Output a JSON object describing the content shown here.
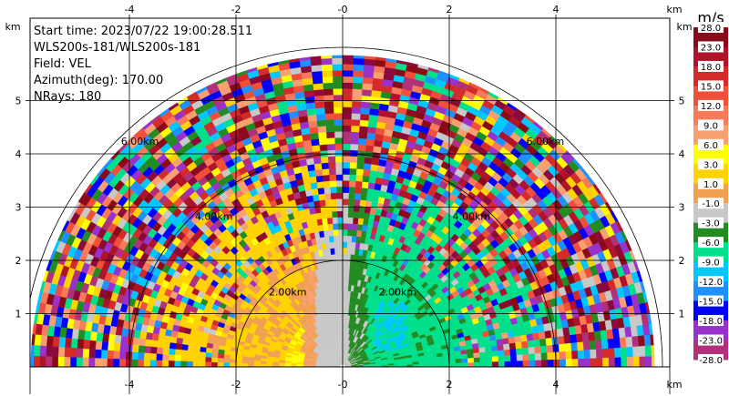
{
  "info": {
    "start_time": "Start time: 2023/07/22 19:00:28.511",
    "instrument": "WLS200s-181/WLS200s-181",
    "field": "Field: VEL",
    "azimuth": "Azimuth(deg): 170.00",
    "nrays": "NRays: 180"
  },
  "chart_data": {
    "type": "heatmap",
    "subtype": "radar RHI scan (polar)",
    "x_ticks": [
      "-4",
      "-2",
      "-0",
      "2",
      "4"
    ],
    "x_tick_values": [
      -4,
      -2,
      0,
      2,
      4
    ],
    "y_ticks": [
      "1",
      "2",
      "3",
      "4",
      "5"
    ],
    "y_tick_values": [
      1,
      2,
      3,
      4,
      5
    ],
    "x_unit": "km",
    "y_unit": "km",
    "xlim": [
      -5.85,
      6.15
    ],
    "ylim": [
      0,
      5.95
    ],
    "max_range_km": 5.85,
    "range_rings": [
      {
        "radius": 2,
        "label": "2.00km"
      },
      {
        "radius": 4,
        "label": "4.00km"
      },
      {
        "radius": 6,
        "label": "6.00km"
      }
    ],
    "grid": true,
    "colorbar": {
      "unit": "m/s",
      "levels": [
        "28.0",
        "23.0",
        "18.0",
        "15.0",
        "12.0",
        "9.0",
        "6.0",
        "3.0",
        "1.0",
        "-1.0",
        "-3.0",
        "-6.0",
        "-9.0",
        "-12.0",
        "-15.0",
        "-18.0",
        "-23.0",
        "-28.0"
      ],
      "colors": [
        "#8b0a1a",
        "#b0122a",
        "#d42a2a",
        "#f0503a",
        "#f77a5a",
        "#f9a070",
        "#ffff00",
        "#ffd200",
        "#f0a050",
        "#c8c8c8",
        "#228b22",
        "#00e08a",
        "#00c8ff",
        "#1e90ff",
        "#0000ff",
        "#9932cc",
        "#b0307a",
        "#8b0a3a"
      ]
    },
    "field_description": "Doppler velocity; near-range region (< ~2.5 km) shows positive velocities (yellow/orange) on the left half and negative velocities (green/cyan) on the right half, with noisy multicolor speckle at far range."
  }
}
